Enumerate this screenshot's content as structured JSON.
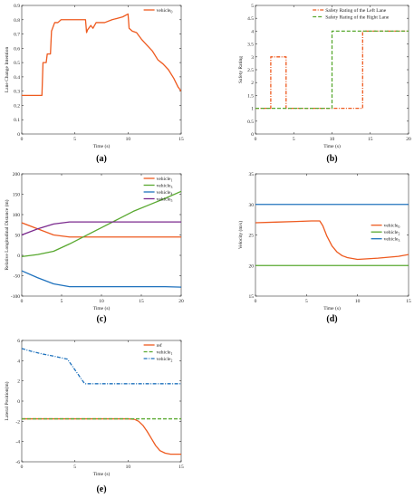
{
  "colors": {
    "orange": "#EE5A1F",
    "green": "#58A82F",
    "blue": "#1F72BD",
    "purple": "#7B2A8E"
  },
  "chart_data": [
    {
      "id": "a",
      "type": "line",
      "panel_label": "(a)",
      "xlabel": "Time (s)",
      "ylabel": "Lane Change Intention",
      "xlim": [
        0,
        15
      ],
      "ylim": [
        0,
        0.9
      ],
      "xticks": [
        0,
        5,
        10,
        15
      ],
      "yticks": [
        0,
        0.1,
        0.2,
        0.3,
        0.4,
        0.5,
        0.6,
        0.7,
        0.8,
        0.9
      ],
      "legend": "top-right",
      "series": [
        {
          "name": "vehicle",
          "sub": "0",
          "color": "orange",
          "style": "solid",
          "legend": true,
          "x": [
            0,
            1.9,
            2,
            2.3,
            2.4,
            2.7,
            2.8,
            3.1,
            3.4,
            3.7,
            4,
            6,
            6.1,
            6.2,
            6.5,
            6.7,
            7,
            7.4,
            7.8,
            8.5,
            9,
            9.5,
            10,
            10.1,
            10.4,
            10.8,
            11.3,
            11.8,
            12.3,
            12.8,
            13.3,
            13.8,
            14.3,
            14.7,
            15
          ],
          "y": [
            0.27,
            0.27,
            0.5,
            0.5,
            0.56,
            0.56,
            0.72,
            0.78,
            0.78,
            0.8,
            0.8,
            0.8,
            0.71,
            0.73,
            0.76,
            0.74,
            0.78,
            0.78,
            0.78,
            0.8,
            0.81,
            0.82,
            0.84,
            0.74,
            0.72,
            0.71,
            0.66,
            0.62,
            0.58,
            0.52,
            0.49,
            0.45,
            0.39,
            0.33,
            0.3
          ]
        }
      ]
    },
    {
      "id": "b",
      "type": "line",
      "panel_label": "(b)",
      "xlabel": "Time (s)",
      "ylabel": "Safety Rating",
      "xlim": [
        0,
        20
      ],
      "ylim": [
        0,
        5
      ],
      "xticks": [
        0,
        5,
        10,
        15,
        20
      ],
      "yticks": [
        0,
        0.5,
        1,
        1.5,
        2,
        2.5,
        3,
        3.5,
        4,
        4.5,
        5
      ],
      "legend": "top-right",
      "series": [
        {
          "name": "Safety Rating of the Left Lane",
          "color": "orange",
          "style": "dashdot",
          "legend": true,
          "x": [
            0,
            2,
            2,
            4,
            4,
            14,
            14,
            20
          ],
          "y": [
            1,
            1,
            3,
            3,
            1,
            1,
            4,
            4
          ]
        },
        {
          "name": "Safety Rating of the Right Lane",
          "color": "green",
          "style": "dashed",
          "legend": true,
          "x": [
            0,
            10,
            10,
            20
          ],
          "y": [
            1,
            1,
            4,
            4
          ]
        }
      ]
    },
    {
      "id": "c",
      "type": "line",
      "panel_label": "(c)",
      "xlabel": "Time (s)",
      "ylabel": "Relative Longitudinal Distance (m)",
      "xlim": [
        0,
        20
      ],
      "ylim": [
        -100,
        200
      ],
      "xticks": [
        0,
        5,
        10,
        15,
        20
      ],
      "yticks": [
        -100,
        -50,
        0,
        50,
        100,
        150,
        200
      ],
      "legend": "top-right",
      "series": [
        {
          "name": "vehicle",
          "sub": "1",
          "color": "orange",
          "style": "solid",
          "legend": true,
          "x": [
            0,
            2,
            4,
            6,
            8,
            10,
            12,
            14,
            16,
            18,
            20
          ],
          "y": [
            80,
            65,
            50,
            45,
            45,
            45,
            45,
            45,
            45,
            45,
            45
          ]
        },
        {
          "name": "vehicle",
          "sub": "3",
          "color": "green",
          "style": "solid",
          "legend": true,
          "x": [
            0,
            2,
            4,
            6,
            8,
            10,
            12,
            14,
            16,
            18,
            20
          ],
          "y": [
            -3,
            2,
            10,
            28,
            48,
            68,
            88,
            108,
            124,
            140,
            157
          ]
        },
        {
          "name": "vehicle",
          "sub": "4",
          "color": "blue",
          "style": "solid",
          "legend": true,
          "x": [
            0,
            2,
            4,
            6,
            8,
            10,
            12,
            14,
            16,
            18,
            20
          ],
          "y": [
            -38,
            -55,
            -70,
            -77,
            -77,
            -77,
            -77,
            -77,
            -77,
            -77,
            -78
          ]
        },
        {
          "name": "vehicle",
          "sub": "5",
          "color": "purple",
          "style": "solid",
          "legend": true,
          "x": [
            0,
            2,
            4,
            6,
            8,
            10,
            12,
            14,
            16,
            18,
            20
          ],
          "y": [
            50,
            65,
            77,
            82,
            82,
            82,
            82,
            82,
            82,
            82,
            82
          ]
        }
      ]
    },
    {
      "id": "d",
      "type": "line",
      "panel_label": "(d)",
      "xlabel": "Time (s)",
      "ylabel": "Velocity (m/s)",
      "xlim": [
        0,
        15
      ],
      "ylim": [
        15,
        35
      ],
      "xticks": [
        0,
        5,
        10,
        15
      ],
      "yticks": [
        15,
        20,
        25,
        30,
        35
      ],
      "legend": "right",
      "series": [
        {
          "name": "vehicle",
          "sub": "0",
          "color": "orange",
          "style": "solid",
          "legend": true,
          "x": [
            0,
            2,
            4,
            5.5,
            6.3,
            6.6,
            7,
            7.5,
            8,
            8.5,
            9,
            10,
            12,
            14,
            15
          ],
          "y": [
            27,
            27.1,
            27.2,
            27.3,
            27.3,
            26.5,
            24.8,
            23.2,
            22.2,
            21.6,
            21.3,
            21,
            21.2,
            21.5,
            21.8
          ]
        },
        {
          "name": "vehicle",
          "sub": "2",
          "color": "green",
          "style": "solid",
          "legend": true,
          "x": [
            0,
            15
          ],
          "y": [
            20,
            20
          ]
        },
        {
          "name": "vehicle",
          "sub": "3",
          "color": "blue",
          "style": "solid",
          "legend": true,
          "x": [
            0,
            15
          ],
          "y": [
            30,
            30
          ]
        }
      ]
    },
    {
      "id": "e",
      "type": "line",
      "panel_label": "(e)",
      "xlabel": "Time (s)",
      "ylabel": "Lateral Position(m)",
      "xlim": [
        0,
        15
      ],
      "ylim": [
        -6,
        6
      ],
      "xticks": [
        0,
        5,
        10,
        15
      ],
      "yticks": [
        -6,
        -4,
        -2,
        0,
        2,
        4,
        6
      ],
      "legend": "top-right",
      "series": [
        {
          "name": "ref",
          "color": "orange",
          "style": "solid",
          "legend": true,
          "x": [
            0,
            10,
            10.6,
            11,
            11.4,
            11.8,
            12.2,
            12.6,
            13,
            13.5,
            14,
            15
          ],
          "y": [
            -1.75,
            -1.75,
            -1.8,
            -2,
            -2.4,
            -3,
            -3.7,
            -4.4,
            -4.9,
            -5.15,
            -5.25,
            -5.25
          ]
        },
        {
          "name": "vehicle",
          "sub": "1",
          "color": "green",
          "style": "dashed",
          "legend": true,
          "x": [
            0,
            15
          ],
          "y": [
            -1.75,
            -1.75
          ]
        },
        {
          "name": "vehicle",
          "sub": "2",
          "color": "blue",
          "style": "dashdot",
          "legend": true,
          "x": [
            0,
            1,
            2,
            3,
            4.3,
            5.9,
            6,
            15
          ],
          "y": [
            5.2,
            4.9,
            4.65,
            4.45,
            4.15,
            1.75,
            1.72,
            1.72
          ]
        }
      ]
    }
  ]
}
